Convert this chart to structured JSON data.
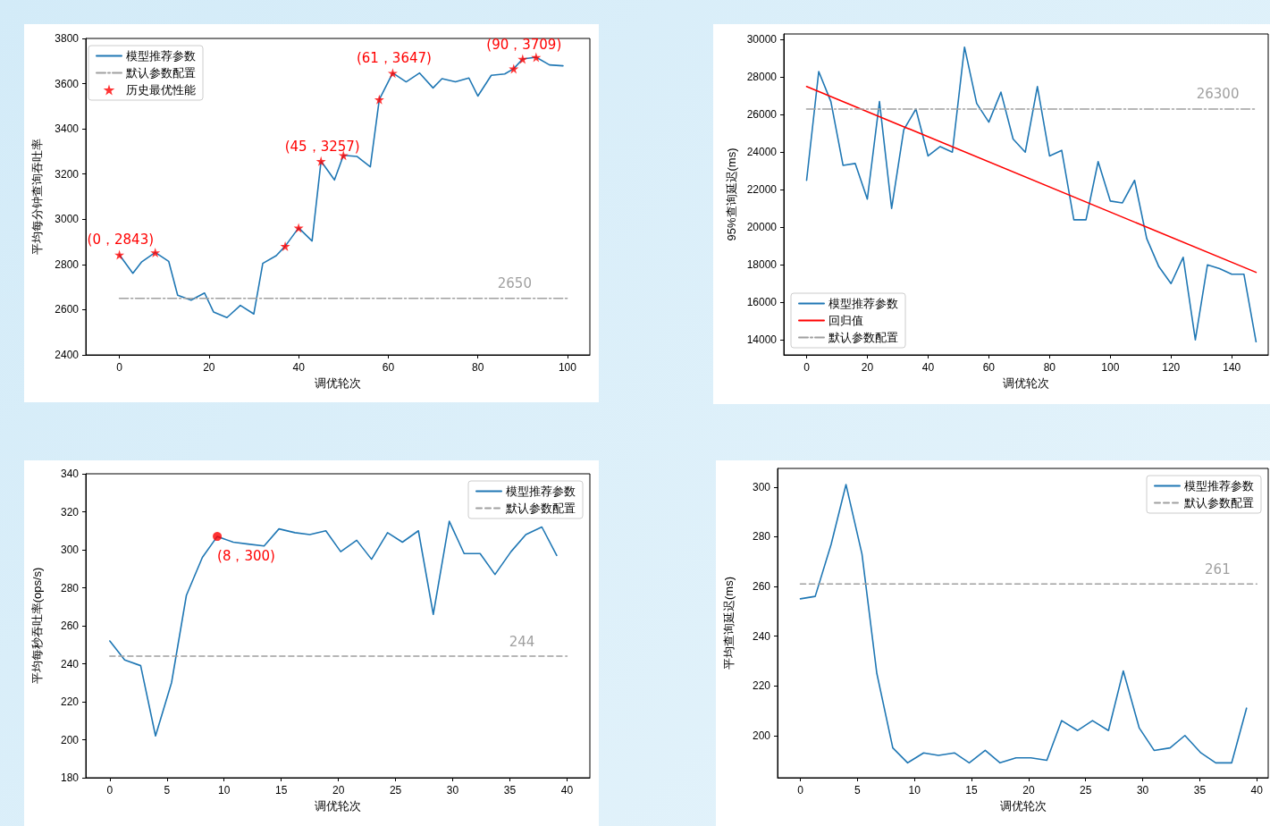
{
  "chart_data": [
    {
      "type": "line",
      "xlabel": "调优轮次",
      "ylabel": "平均每分钟查询吞吐率",
      "xlim": [
        -7.5,
        105
      ],
      "xticks": [
        0,
        20,
        40,
        60,
        80,
        100
      ],
      "ylim": [
        2400,
        3800
      ],
      "yticks": [
        2400,
        2600,
        2800,
        3000,
        3200,
        3400,
        3600,
        3800
      ],
      "grid": false,
      "legend": "top left",
      "x": [
        0,
        3,
        5,
        8,
        11,
        13,
        16,
        19,
        21,
        24,
        27,
        30,
        32,
        35,
        37,
        40,
        43,
        45,
        48,
        50,
        53,
        56,
        58,
        61,
        64,
        67,
        70,
        72,
        75,
        78,
        80,
        83,
        86,
        88,
        90,
        93,
        96,
        99
      ],
      "series": [
        {
          "name": "模型推荐参数",
          "type": "line",
          "color": "#1f77b4",
          "marker": "none",
          "values": [
            2843,
            2761,
            2812,
            2853,
            2814,
            2664,
            2642,
            2674,
            2590,
            2565,
            2619,
            2581,
            2805,
            2839,
            2881,
            2962,
            2904,
            3257,
            3174,
            3283,
            3278,
            3232,
            3530,
            3647,
            3608,
            3647,
            3581,
            3622,
            3608,
            3625,
            3545,
            3637,
            3643,
            3666,
            3709,
            3717,
            3683,
            3679
          ]
        },
        {
          "name": "默认参数配置",
          "type": "line",
          "color": "#a0a0a0",
          "marker": "none",
          "line_style": "dashdot",
          "x": [
            0,
            100
          ],
          "values": [
            2650,
            2650
          ]
        },
        {
          "name": "历史最优性能",
          "type": "scatter",
          "color": "#ff0000",
          "marker": "star",
          "x": [
            0,
            8,
            37,
            40,
            45,
            50,
            58,
            61,
            88,
            90,
            93
          ],
          "values": [
            2843,
            2853,
            2881,
            2962,
            3257,
            3283,
            3530,
            3647,
            3666,
            3709,
            3717
          ]
        }
      ],
      "annotations": [
        {
          "text": "(0，2843)",
          "x": 0,
          "y": 2843
        },
        {
          "text": "(45，3257)",
          "x": 45,
          "y": 3257
        },
        {
          "text": "(61，3647)",
          "x": 61,
          "y": 3647
        },
        {
          "text": "(90，3709)",
          "x": 90,
          "y": 3709
        },
        {
          "text": "2650",
          "x": 88,
          "y": 2650
        }
      ]
    },
    {
      "type": "line",
      "xlabel": "调优轮次",
      "ylabel": "95%查询延迟(ms)",
      "xlim": [
        -7.5,
        152
      ],
      "xticks": [
        0,
        20,
        40,
        60,
        80,
        100,
        120,
        140
      ],
      "ylim": [
        13200,
        30300
      ],
      "yticks": [
        14000,
        16000,
        18000,
        20000,
        22000,
        24000,
        26000,
        28000,
        30000
      ],
      "grid": false,
      "legend": "bottom left",
      "x": [
        0,
        4,
        8,
        12,
        16,
        20,
        24,
        28,
        32,
        36,
        40,
        44,
        48,
        52,
        56,
        60,
        64,
        68,
        72,
        76,
        80,
        84,
        88,
        92,
        96,
        100,
        104,
        108,
        112,
        116,
        120,
        124,
        128,
        132,
        136,
        140,
        144,
        148
      ],
      "series": [
        {
          "name": "模型推荐参数",
          "type": "line",
          "color": "#1f77b4",
          "marker": "none",
          "values": [
            22500,
            28300,
            26700,
            23300,
            23400,
            21500,
            26700,
            21000,
            25200,
            26300,
            23800,
            24300,
            24000,
            29600,
            26600,
            25600,
            27200,
            24700,
            24000,
            27500,
            23800,
            24100,
            20400,
            20400,
            23500,
            21400,
            21300,
            22500,
            19400,
            17900,
            17000,
            18400,
            14000,
            18000,
            17800,
            17500,
            17500,
            13900
          ]
        },
        {
          "name": "回归值",
          "type": "line",
          "color": "#ff0000",
          "marker": "none",
          "x": [
            0,
            148
          ],
          "values": [
            27500,
            17600
          ]
        },
        {
          "name": "默认参数配置",
          "type": "line",
          "color": "#a0a0a0",
          "marker": "none",
          "line_style": "dashdot",
          "x": [
            0,
            148
          ],
          "values": [
            26300,
            26300
          ]
        }
      ],
      "annotations": [
        {
          "text": "26300",
          "x": 135,
          "y": 26300
        }
      ]
    },
    {
      "type": "line",
      "xlabel": "调优轮次",
      "ylabel": "平均每秒吞吐率(ops/s)",
      "xlim": [
        -2.1,
        42
      ],
      "xticks": [
        0,
        5,
        10,
        15,
        20,
        25,
        30,
        35,
        40
      ],
      "ylim": [
        180,
        340
      ],
      "yticks": [
        180,
        200,
        220,
        240,
        260,
        280,
        300,
        320,
        340
      ],
      "grid": false,
      "legend": "top right",
      "x": [
        0,
        1.3,
        2.7,
        4.0,
        5.4,
        6.7,
        8.1,
        9.4,
        10.8,
        12.1,
        13.5,
        14.8,
        16.2,
        17.5,
        18.9,
        20.2,
        21.6,
        22.9,
        24.3,
        25.6,
        27.0,
        28.3,
        29.7,
        31.0,
        32.4,
        33.7,
        35.1,
        36.4,
        37.8,
        39.1
      ],
      "series": [
        {
          "name": "模型推荐参数",
          "type": "line",
          "color": "#1f77b4",
          "marker": "none",
          "values": [
            252,
            242,
            239,
            202,
            230,
            276,
            296,
            307,
            304,
            303,
            302,
            311,
            309,
            308,
            310,
            299,
            305,
            295,
            309,
            304,
            310,
            266,
            315,
            298,
            298,
            287,
            299,
            308,
            312,
            297
          ]
        },
        {
          "name": "默认参数配置",
          "type": "line",
          "color": "#a0a0a0",
          "marker": "none",
          "line_style": "dashed",
          "x": [
            0,
            40
          ],
          "values": [
            244,
            244
          ]
        },
        {
          "type": "scatter",
          "color": "#ff0000",
          "marker": "circle",
          "x": [
            9.4
          ],
          "values": [
            307
          ]
        }
      ],
      "annotations": [
        {
          "text": "(8，300)",
          "x": 9.4,
          "y": 307
        },
        {
          "text": "244",
          "x": 36,
          "y": 244
        }
      ]
    },
    {
      "type": "line",
      "xlabel": "调优轮次",
      "ylabel": "平均查询延迟(ms)",
      "xlim": [
        -2,
        41
      ],
      "xticks": [
        0,
        5,
        10,
        15,
        20,
        25,
        30,
        35,
        40
      ],
      "ylim": [
        183,
        307.5
      ],
      "yticks": [
        200,
        220,
        240,
        260,
        280,
        300
      ],
      "grid": false,
      "legend": "top right",
      "x": [
        0,
        1.3,
        2.7,
        4.0,
        5.4,
        6.7,
        8.1,
        9.4,
        10.8,
        12.1,
        13.5,
        14.8,
        16.2,
        17.5,
        18.9,
        20.2,
        21.6,
        22.9,
        24.3,
        25.6,
        27.0,
        28.3,
        29.7,
        31.0,
        32.4,
        33.7,
        35.1,
        36.4,
        37.8,
        39.1
      ],
      "series": [
        {
          "name": "模型推荐参数",
          "type": "line",
          "color": "#1f77b4",
          "marker": "none",
          "values": [
            255,
            256,
            277,
            301,
            273,
            225,
            195,
            189,
            193,
            192,
            193,
            189,
            194,
            189,
            191,
            191,
            190,
            206,
            202,
            206,
            202,
            226,
            203,
            194,
            195,
            200,
            193,
            189,
            189,
            211
          ]
        },
        {
          "name": "默认参数配置",
          "type": "line",
          "color": "#a0a0a0",
          "marker": "none",
          "line_style": "dashed",
          "x": [
            0,
            40
          ],
          "values": [
            261,
            261
          ]
        }
      ],
      "annotations": [
        {
          "text": "261",
          "x": 36.5,
          "y": 261
        }
      ]
    }
  ]
}
